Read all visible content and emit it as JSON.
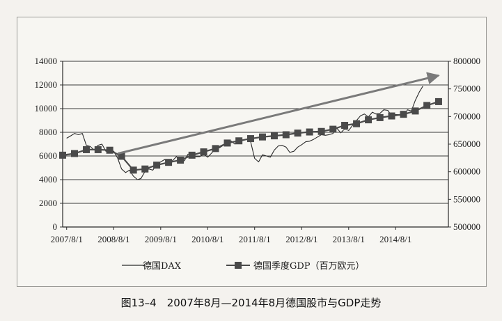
{
  "caption": "图13–4　2007年8月—2014年8月德国股市与GDP走势",
  "chart_data": {
    "type": "line",
    "x_ticks": [
      "2007/8/1",
      "2008/8/1",
      "2009/8/1",
      "2010/8/1",
      "2011/8/1",
      "2012/8/1",
      "2013/8/1",
      "2014/8/1"
    ],
    "left_axis": {
      "min": 0,
      "max": 14000,
      "ticks": [
        0,
        2000,
        4000,
        6000,
        8000,
        10000,
        12000,
        14000
      ]
    },
    "right_axis": {
      "min": 500000,
      "max": 800000,
      "ticks": [
        500000,
        550000,
        600000,
        650000,
        700000,
        750000,
        800000
      ]
    },
    "grid": true,
    "legend_position": "bottom",
    "series": [
      {
        "name": "德国DAX",
        "axis": "left",
        "style": "line",
        "color": "#2a2a2a",
        "points": [
          [
            "2007-08-01",
            7500
          ],
          [
            "2007-09-01",
            7700
          ],
          [
            "2007-10-01",
            7900
          ],
          [
            "2007-11-01",
            7800
          ],
          [
            "2007-12-01",
            7900
          ],
          [
            "2008-01-01",
            6900
          ],
          [
            "2008-02-01",
            6800
          ],
          [
            "2008-03-01",
            6500
          ],
          [
            "2008-04-01",
            6900
          ],
          [
            "2008-05-01",
            7000
          ],
          [
            "2008-06-01",
            6400
          ],
          [
            "2008-07-01",
            6400
          ],
          [
            "2008-08-01",
            6400
          ],
          [
            "2008-09-01",
            5800
          ],
          [
            "2008-10-01",
            4900
          ],
          [
            "2008-11-01",
            4600
          ],
          [
            "2008-12-01",
            4800
          ],
          [
            "2009-01-01",
            4300
          ],
          [
            "2009-02-01",
            4000
          ],
          [
            "2009-03-01",
            4100
          ],
          [
            "2009-04-01",
            4700
          ],
          [
            "2009-05-01",
            4900
          ],
          [
            "2009-06-01",
            4800
          ],
          [
            "2009-07-01",
            5300
          ],
          [
            "2009-08-01",
            5500
          ],
          [
            "2009-09-01",
            5700
          ],
          [
            "2009-10-01",
            5400
          ],
          [
            "2009-11-01",
            5600
          ],
          [
            "2009-12-01",
            5950
          ],
          [
            "2010-01-01",
            5600
          ],
          [
            "2010-02-01",
            5600
          ],
          [
            "2010-03-01",
            6150
          ],
          [
            "2010-04-01",
            6150
          ],
          [
            "2010-05-01",
            5950
          ],
          [
            "2010-06-01",
            5950
          ],
          [
            "2010-07-01",
            6150
          ],
          [
            "2010-08-01",
            5900
          ],
          [
            "2010-09-01",
            6250
          ],
          [
            "2010-10-01",
            6600
          ],
          [
            "2010-11-01",
            6700
          ],
          [
            "2010-12-01",
            6900
          ],
          [
            "2011-01-01",
            7100
          ],
          [
            "2011-02-01",
            7250
          ],
          [
            "2011-03-01",
            7000
          ],
          [
            "2011-04-01",
            7500
          ],
          [
            "2011-05-01",
            7300
          ],
          [
            "2011-06-01",
            7400
          ],
          [
            "2011-07-01",
            7200
          ],
          [
            "2011-08-01",
            5800
          ],
          [
            "2011-09-01",
            5500
          ],
          [
            "2011-10-01",
            6100
          ],
          [
            "2011-11-01",
            6000
          ],
          [
            "2011-12-01",
            5900
          ],
          [
            "2012-01-01",
            6500
          ],
          [
            "2012-02-01",
            6850
          ],
          [
            "2012-03-01",
            6900
          ],
          [
            "2012-04-01",
            6750
          ],
          [
            "2012-05-01",
            6300
          ],
          [
            "2012-06-01",
            6400
          ],
          [
            "2012-07-01",
            6750
          ],
          [
            "2012-08-01",
            6950
          ],
          [
            "2012-09-01",
            7200
          ],
          [
            "2012-10-01",
            7250
          ],
          [
            "2012-11-01",
            7400
          ],
          [
            "2012-12-01",
            7600
          ],
          [
            "2013-01-01",
            7800
          ],
          [
            "2013-02-01",
            7750
          ],
          [
            "2013-03-01",
            7800
          ],
          [
            "2013-04-01",
            7900
          ],
          [
            "2013-05-01",
            8350
          ],
          [
            "2013-06-01",
            7950
          ],
          [
            "2013-07-01",
            8300
          ],
          [
            "2013-08-01",
            8150
          ],
          [
            "2013-09-01",
            8600
          ],
          [
            "2013-10-01",
            9000
          ],
          [
            "2013-11-01",
            9400
          ],
          [
            "2013-12-01",
            9550
          ],
          [
            "2014-01-01",
            9300
          ],
          [
            "2014-02-01",
            9700
          ],
          [
            "2014-03-01",
            9550
          ],
          [
            "2014-04-01",
            9600
          ],
          [
            "2014-05-01",
            9900
          ],
          [
            "2014-06-01",
            9850
          ],
          [
            "2014-07-01",
            9400
          ],
          [
            "2014-08-01",
            9500
          ],
          [
            "2014-09-01",
            9500
          ],
          [
            "2014-10-01",
            9300
          ],
          [
            "2014-11-01",
            9900
          ],
          [
            "2014-12-01",
            9800
          ],
          [
            "2015-01-01",
            10700
          ],
          [
            "2015-02-01",
            11400
          ],
          [
            "2015-03-01",
            11900
          ]
        ]
      },
      {
        "name": "德国季度GDP（百万欧元）",
        "axis": "right",
        "style": "line-square-markers",
        "color": "#4a4a4a",
        "points": [
          [
            "2007-07-01",
            630000
          ],
          [
            "2007-10-01",
            633000
          ],
          [
            "2008-01-01",
            640000
          ],
          [
            "2008-04-01",
            640000
          ],
          [
            "2008-07-01",
            639000
          ],
          [
            "2008-10-01",
            628000
          ],
          [
            "2009-01-01",
            603000
          ],
          [
            "2009-04-01",
            605000
          ],
          [
            "2009-07-01",
            612000
          ],
          [
            "2009-10-01",
            617000
          ],
          [
            "2010-01-01",
            621000
          ],
          [
            "2010-04-01",
            630000
          ],
          [
            "2010-07-01",
            636000
          ],
          [
            "2010-10-01",
            642000
          ],
          [
            "2011-01-01",
            652000
          ],
          [
            "2011-04-01",
            656000
          ],
          [
            "2011-07-01",
            660000
          ],
          [
            "2011-10-01",
            663000
          ],
          [
            "2012-01-01",
            665000
          ],
          [
            "2012-04-01",
            667000
          ],
          [
            "2012-07-01",
            670000
          ],
          [
            "2012-10-01",
            672000
          ],
          [
            "2013-01-01",
            673000
          ],
          [
            "2013-04-01",
            677000
          ],
          [
            "2013-07-01",
            684000
          ],
          [
            "2013-10-01",
            687000
          ],
          [
            "2014-01-01",
            694000
          ],
          [
            "2014-04-01",
            698000
          ],
          [
            "2014-07-01",
            701000
          ],
          [
            "2014-10-01",
            704000
          ],
          [
            "2015-01-01",
            710000
          ],
          [
            "2015-04-01",
            720000
          ],
          [
            "2015-07-01",
            727000
          ]
        ]
      },
      {
        "name": "",
        "axis": "left",
        "style": "arrow",
        "color": "#7a7a7a",
        "points": [
          [
            "2008-09-01",
            6200
          ],
          [
            "2015-07-01",
            12800
          ]
        ]
      }
    ]
  }
}
